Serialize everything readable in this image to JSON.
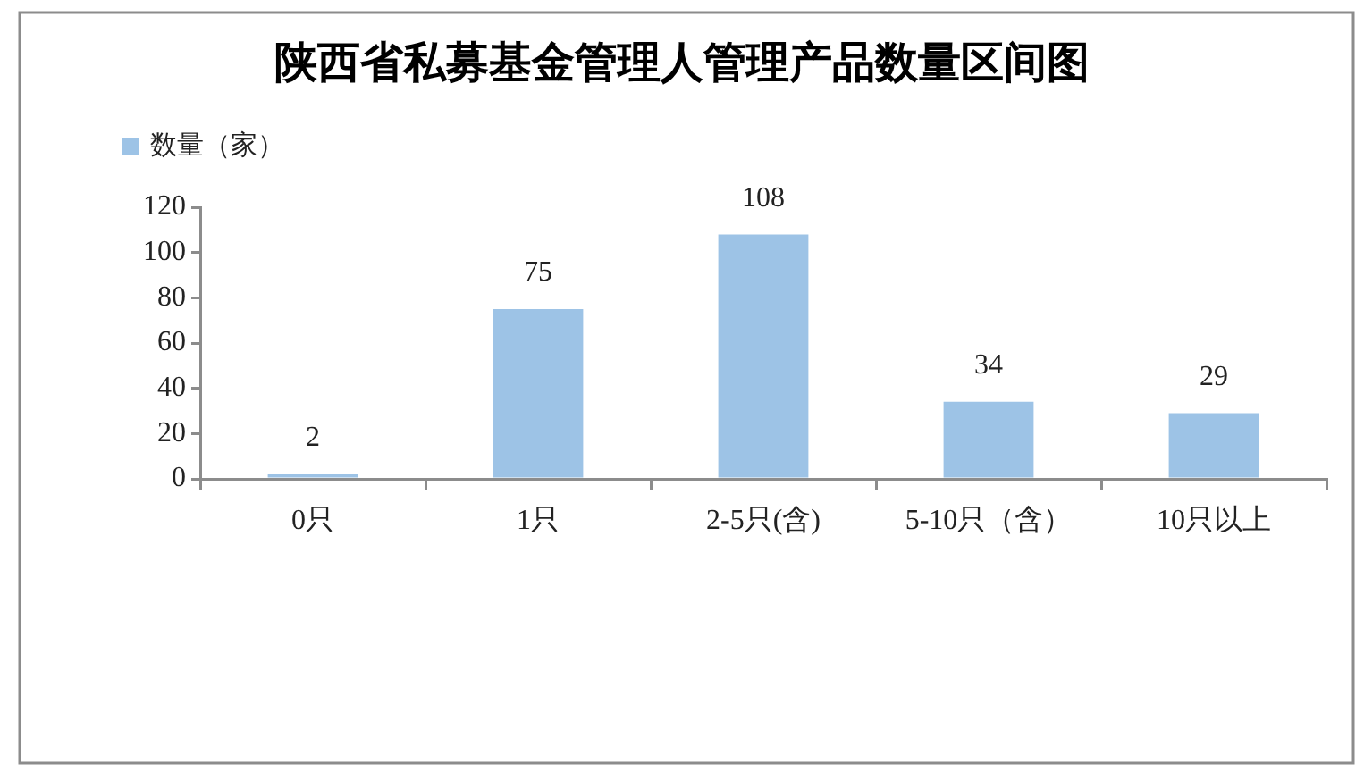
{
  "chart_data": {
    "type": "bar",
    "title": "陕西省私募基金管理人管理产品数量区间图",
    "categories": [
      "0只",
      "1只",
      "2-5只(含)",
      "5-10只（含）",
      "10只以上"
    ],
    "series": [
      {
        "name": "数量（家）",
        "color": "#9dc3e6",
        "values": [
          2,
          75,
          108,
          34,
          29
        ]
      }
    ],
    "ylim": [
      0,
      120
    ],
    "yticks": [
      0,
      20,
      40,
      60,
      80,
      100,
      120
    ],
    "data_labels": true,
    "legend": "top left"
  }
}
